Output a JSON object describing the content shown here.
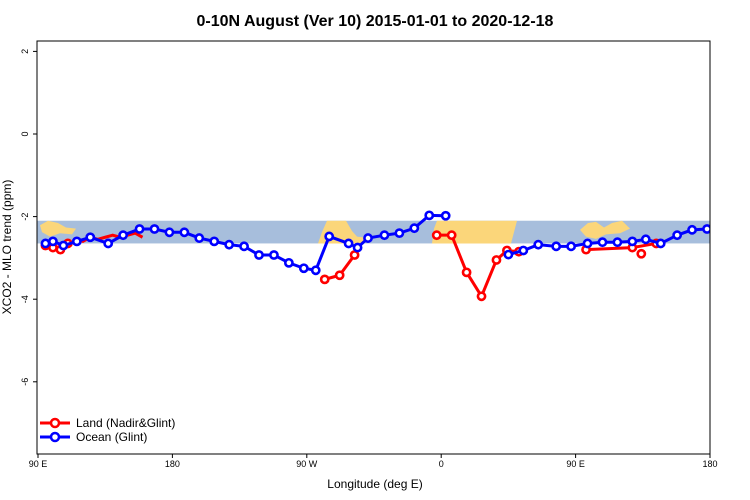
{
  "chart_data": {
    "type": "line",
    "title": "0-10N August (Ver 10)   2015-01-01 to 2020-12-18",
    "xlabel": "Longitude (deg E)",
    "ylabel": "XCO2 - MLO trend (ppm)",
    "x_ticks": [
      {
        "value": 90,
        "label": "90 E"
      },
      {
        "value": 180,
        "label": "180"
      },
      {
        "value": 270,
        "label": "90 W"
      },
      {
        "value": 360,
        "label": "0"
      },
      {
        "value": 450,
        "label": "90 E"
      },
      {
        "value": 540,
        "label": "180"
      }
    ],
    "y_ticks": [
      {
        "value": 2,
        "label": "2"
      },
      {
        "value": 0,
        "label": "0"
      },
      {
        "value": -2,
        "label": "-2"
      },
      {
        "value": -4,
        "label": "-4"
      },
      {
        "value": -6,
        "label": "-6"
      }
    ],
    "xlim": [
      90,
      540
    ],
    "ylim": [
      -7.6,
      2.35
    ],
    "background_band": {
      "ymin": -2.65,
      "ymax": -2.1,
      "ocean_color": "#a7bedc",
      "land_color": "#fbd67a"
    },
    "legend_position": "bottom-left",
    "series": [
      {
        "name": "Land (Nadir&Glint)",
        "color": "#ff0000",
        "segments": [
          {
            "x": [
              95,
              100,
              105,
              110
            ],
            "y": [
              -2.7,
              -2.75,
              -2.8,
              -2.65
            ]
          },
          {
            "x": [
              116,
              120,
              125,
              130,
              135,
              140,
              145,
              150,
              155,
              160
            ],
            "y": [
              -2.55,
              -2.6,
              -2.5,
              -2.55,
              -2.5,
              -2.45,
              -2.5,
              -2.45,
              -2.4,
              -2.5
            ]
          },
          {
            "x": [
              282,
              292,
              302
            ],
            "y": [
              -3.52,
              -3.42,
              -2.93
            ]
          },
          {
            "x": [
              357,
              367,
              377,
              387,
              397,
              404,
              412
            ],
            "y": [
              -2.45,
              -2.45,
              -3.35,
              -3.93,
              -3.05,
              -2.82,
              -2.85
            ]
          },
          {
            "x": [
              457,
              488,
              504
            ],
            "y": [
              -2.8,
              -2.75,
              -2.65
            ]
          }
        ],
        "markers_x": [
          95,
          100,
          105,
          110,
          282,
          292,
          302,
          357,
          367,
          377,
          387,
          397,
          404,
          412,
          457,
          488,
          494,
          504
        ],
        "markers_y": [
          -2.7,
          -2.75,
          -2.8,
          -2.65,
          -3.52,
          -3.42,
          -2.93,
          -2.45,
          -2.45,
          -3.35,
          -3.93,
          -3.05,
          -2.82,
          -2.85,
          -2.8,
          -2.75,
          -2.9,
          -2.65
        ]
      },
      {
        "name": "Ocean (Glint)",
        "color": "#0000ff",
        "x": [
          95,
          100,
          107,
          116,
          125,
          137,
          147,
          158,
          168,
          178,
          188,
          198,
          208,
          218,
          228,
          238,
          248,
          258,
          268,
          276,
          285,
          298,
          304,
          311,
          322,
          332,
          342,
          352,
          363,
          405,
          415,
          425,
          437,
          447,
          458,
          468,
          478,
          488,
          497,
          507,
          518,
          528,
          538
        ],
        "y": [
          -2.65,
          -2.6,
          -2.7,
          -2.6,
          -2.5,
          -2.65,
          -2.45,
          -2.3,
          -2.3,
          -2.38,
          -2.38,
          -2.52,
          -2.6,
          -2.68,
          -2.72,
          -2.93,
          -2.93,
          -3.12,
          -3.25,
          -3.3,
          -2.48,
          -2.65,
          -2.75,
          -2.52,
          -2.45,
          -2.4,
          -2.28,
          -1.97,
          -1.98,
          -2.92,
          -2.82,
          -2.68,
          -2.72,
          -2.72,
          -2.65,
          -2.62,
          -2.62,
          -2.6,
          -2.55,
          -2.65,
          -2.45,
          -2.32,
          -2.3
        ],
        "segments": [
          {
            "x": [
              95,
              100,
              107,
              116,
              125,
              137,
              147,
              158,
              168,
              178,
              188,
              198,
              208,
              218,
              228,
              238,
              248,
              258,
              268,
              276,
              285,
              298
            ],
            "y": [
              -2.65,
              -2.6,
              -2.7,
              -2.6,
              -2.5,
              -2.65,
              -2.45,
              -2.3,
              -2.3,
              -2.38,
              -2.38,
              -2.52,
              -2.6,
              -2.68,
              -2.72,
              -2.93,
              -2.93,
              -3.12,
              -3.25,
              -3.3,
              -2.48,
              -2.65
            ]
          },
          {
            "x": [
              298,
              304,
              311,
              322,
              332,
              342,
              352,
              363
            ],
            "y": [
              -2.65,
              -2.75,
              -2.52,
              -2.45,
              -2.4,
              -2.28,
              -1.97,
              -1.98
            ]
          },
          {
            "x": [
              405,
              415,
              425,
              437,
              447,
              458,
              468,
              478,
              488,
              497,
              507,
              518,
              528,
              538
            ],
            "y": [
              -2.92,
              -2.82,
              -2.68,
              -2.72,
              -2.72,
              -2.65,
              -2.62,
              -2.62,
              -2.6,
              -2.55,
              -2.65,
              -2.45,
              -2.32,
              -2.3
            ]
          }
        ]
      }
    ]
  }
}
